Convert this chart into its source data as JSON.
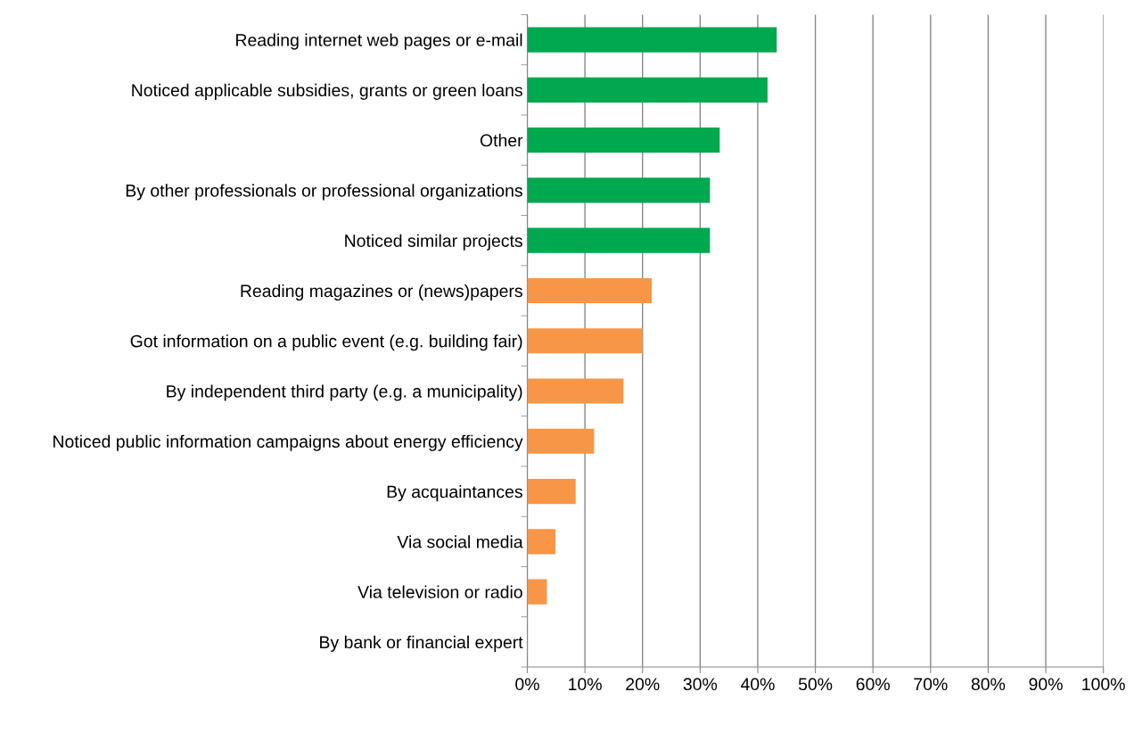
{
  "chart_data": {
    "type": "bar",
    "orientation": "horizontal",
    "categories": [
      "Reading internet web pages or e-mail",
      "Noticed applicable subsidies, grants or green loans",
      "Other",
      "By other professionals or professional organizations",
      "Noticed similar projects",
      "Reading magazines or (news)papers",
      "Got information on a public event (e.g. building fair)",
      "By independent third party (e.g. a municipality)",
      "Noticed public information campaigns about energy efficiency",
      "By acquaintances",
      "Via social media",
      "Via television or radio",
      "By bank or financial expert"
    ],
    "values": [
      43.3,
      41.7,
      33.4,
      31.7,
      31.7,
      21.6,
      20.0,
      16.7,
      11.6,
      8.4,
      4.9,
      3.4,
      0
    ],
    "colors": [
      "#00a84f",
      "#00a84f",
      "#00a84f",
      "#00a84f",
      "#00a84f",
      "#f79646",
      "#f79646",
      "#f79646",
      "#f79646",
      "#f79646",
      "#f79646",
      "#f79646",
      "#f79646"
    ],
    "xlim": [
      0,
      100
    ],
    "xticks": [
      {
        "value": 0,
        "label": "0%"
      },
      {
        "value": 10,
        "label": "10%"
      },
      {
        "value": 20,
        "label": "20%"
      },
      {
        "value": 30,
        "label": "30%"
      },
      {
        "value": 40,
        "label": "40%"
      },
      {
        "value": 50,
        "label": "50%"
      },
      {
        "value": 60,
        "label": "60%"
      },
      {
        "value": 70,
        "label": "70%"
      },
      {
        "value": 80,
        "label": "80%"
      },
      {
        "value": 90,
        "label": "90%"
      },
      {
        "value": 100,
        "label": "100%"
      }
    ],
    "grid": "x",
    "legend": false
  }
}
